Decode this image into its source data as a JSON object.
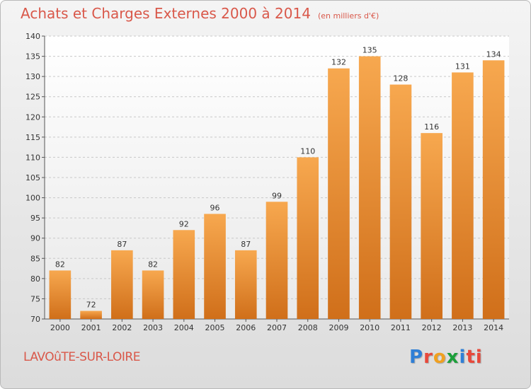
{
  "header": {
    "title": "Achats et Charges Externes 2000 à 2014",
    "unit": "(en milliers d'€)"
  },
  "footer": {
    "place": "LAVOûTE-SUR-LOIRE",
    "logo_text": "Proxiti"
  },
  "colors": {
    "bar_light": "#f7a84f",
    "bar_dark": "#d06f1a",
    "title": "#d9584a",
    "grid": "#c8c8c8"
  },
  "chart_data": {
    "type": "bar",
    "categories": [
      "2000",
      "2001",
      "2002",
      "2003",
      "2004",
      "2005",
      "2006",
      "2007",
      "2008",
      "2009",
      "2010",
      "2011",
      "2012",
      "2013",
      "2014"
    ],
    "values": [
      82,
      72,
      87,
      82,
      92,
      96,
      87,
      99,
      110,
      132,
      135,
      128,
      116,
      131,
      134
    ],
    "ylim": [
      70,
      140
    ],
    "yticks": [
      70,
      75,
      80,
      85,
      90,
      95,
      100,
      105,
      110,
      115,
      120,
      125,
      130,
      135,
      140
    ],
    "grid": true
  }
}
